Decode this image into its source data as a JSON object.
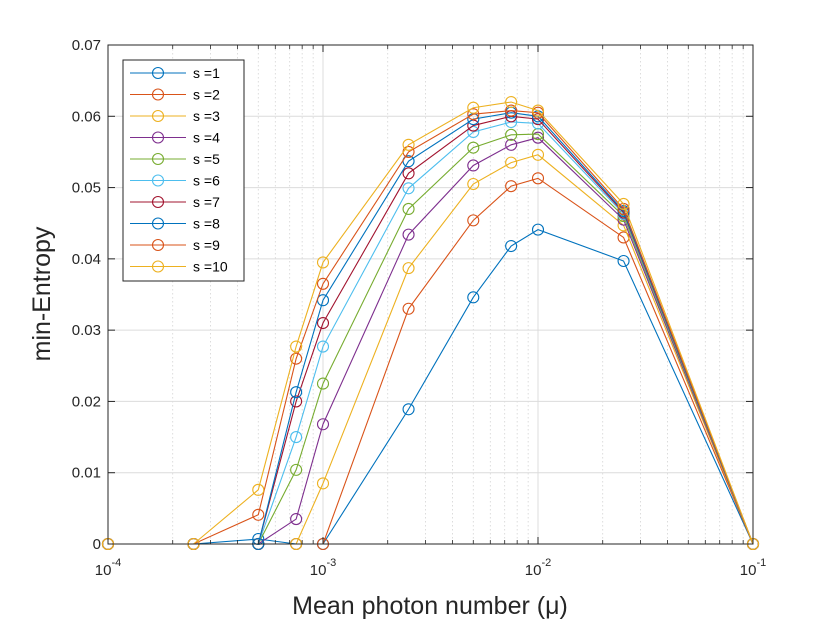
{
  "chart_data": {
    "type": "line",
    "xscale": "log",
    "xlabel": "Mean photon number (μ)",
    "ylabel": "min-Entropy",
    "xlim": [
      0.0001,
      0.1
    ],
    "ylim": [
      0,
      0.07
    ],
    "x_ticks": [
      {
        "value": 0.0001,
        "base": "10",
        "exp": "-4"
      },
      {
        "value": 0.001,
        "base": "10",
        "exp": "-3"
      },
      {
        "value": 0.01,
        "base": "10",
        "exp": "-2"
      },
      {
        "value": 0.1,
        "base": "10",
        "exp": "-1"
      }
    ],
    "y_ticks": [
      "0",
      "0.01",
      "0.02",
      "0.03",
      "0.04",
      "0.05",
      "0.06",
      "0.07"
    ],
    "grid": true,
    "legend_position": "top-left",
    "x": [
      0.0001,
      0.00025,
      0.0005,
      0.00075,
      0.001,
      0.0025,
      0.005,
      0.0075,
      0.01,
      0.025,
      0.1
    ],
    "series": [
      {
        "name": "s =1",
        "color": "#0072BD",
        "values": [
          0,
          0,
          0.0007,
          0,
          0,
          0.0189,
          0.0346,
          0.0418,
          0.0441,
          0.0397,
          0
        ]
      },
      {
        "name": "s =2",
        "color": "#D95319",
        "values": [
          0,
          0,
          0,
          0,
          0,
          0.033,
          0.0454,
          0.0502,
          0.0513,
          0.043,
          0
        ]
      },
      {
        "name": "s =3",
        "color": "#EDB120",
        "values": [
          0,
          0,
          0,
          0,
          0.0085,
          0.0387,
          0.0505,
          0.0535,
          0.0546,
          0.0447,
          0
        ]
      },
      {
        "name": "s =4",
        "color": "#7E2F8E",
        "values": [
          0,
          0,
          0,
          0.0035,
          0.0168,
          0.0434,
          0.0531,
          0.056,
          0.057,
          0.0455,
          0
        ]
      },
      {
        "name": "s =5",
        "color": "#77AC30",
        "values": [
          0,
          0,
          0,
          0.0104,
          0.0225,
          0.047,
          0.0556,
          0.0574,
          0.0575,
          0.046,
          0
        ]
      },
      {
        "name": "s =6",
        "color": "#4DBEEE",
        "values": [
          0,
          0,
          0,
          0.015,
          0.0277,
          0.0499,
          0.0578,
          0.0592,
          0.059,
          0.0463,
          0
        ]
      },
      {
        "name": "s =7",
        "color": "#A2142F",
        "values": [
          0,
          0,
          0,
          0.02,
          0.031,
          0.052,
          0.0587,
          0.06,
          0.0596,
          0.0465,
          0
        ]
      },
      {
        "name": "s =8",
        "color": "#0072BD",
        "values": [
          0,
          0,
          0,
          0.0213,
          0.0342,
          0.0537,
          0.0596,
          0.0605,
          0.06,
          0.0467,
          0
        ]
      },
      {
        "name": "s =9",
        "color": "#D95319",
        "values": [
          0,
          0,
          0.0041,
          0.026,
          0.0365,
          0.055,
          0.0603,
          0.0608,
          0.0605,
          0.047,
          0
        ]
      },
      {
        "name": "s =10",
        "color": "#EDB120",
        "values": [
          0,
          0,
          0.0076,
          0.0277,
          0.0395,
          0.056,
          0.0612,
          0.062,
          0.0608,
          0.0477,
          0
        ]
      }
    ]
  }
}
